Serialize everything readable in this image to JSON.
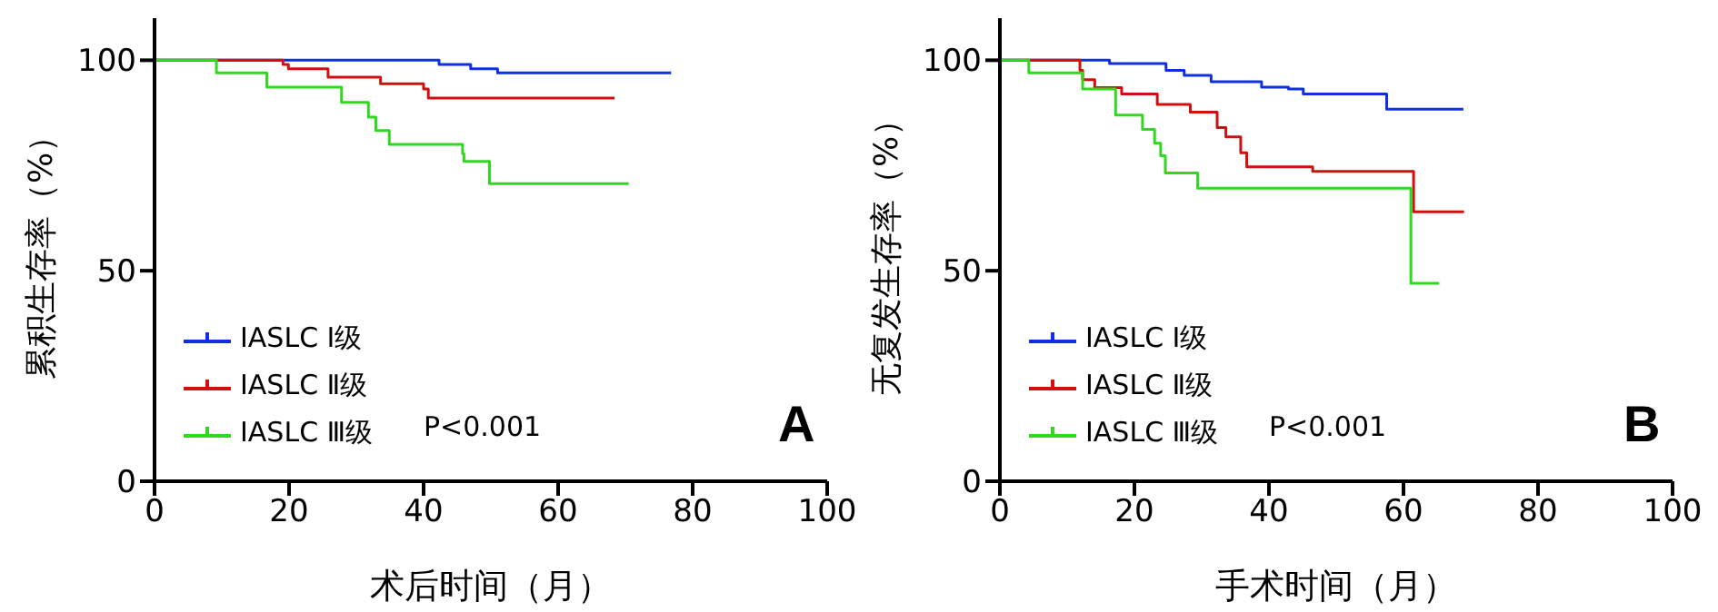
{
  "chart_data": [
    {
      "type": "step",
      "xlabel": "术后时间（月）",
      "ylabel": "累积生存率（%）",
      "xlim": [
        0,
        100
      ],
      "xticks": [
        0,
        20,
        40,
        60,
        80,
        100
      ],
      "ylim": [
        0,
        110
      ],
      "yticks": [
        0,
        50,
        100
      ],
      "legend": "bottom left",
      "grid": false,
      "marker": "none",
      "line_style": "solid",
      "annotations": [
        "P<0.001",
        "A"
      ],
      "series": [
        {
          "name": "IASLC Ⅰ级",
          "color": "#1030e0",
          "x": [
            0,
            42.3,
            47,
            51,
            76.8
          ],
          "values": [
            100,
            99,
            98,
            97,
            97
          ]
        },
        {
          "name": "IASLC Ⅱ级",
          "color": "#d01010",
          "x": [
            0,
            19.1,
            19.9,
            25.8,
            33.6,
            40,
            40.7,
            68.4
          ],
          "values": [
            100,
            99,
            98,
            96,
            94.4,
            93.2,
            91,
            91
          ]
        },
        {
          "name": "IASLC Ⅲ级",
          "color": "#30d820",
          "x": [
            0,
            9.2,
            16.7,
            27.8,
            31.8,
            32.9,
            34.9,
            45.8,
            46,
            49.8,
            70.5
          ],
          "values": [
            100,
            97,
            93.6,
            90,
            86.5,
            83.3,
            80,
            77.8,
            76,
            70.7,
            70.7
          ]
        }
      ]
    },
    {
      "type": "step",
      "xlabel": "手术时间（月）",
      "ylabel": "无复发生存率（%）",
      "xlim": [
        0,
        100
      ],
      "xticks": [
        0,
        20,
        40,
        60,
        80,
        100
      ],
      "ylim": [
        0,
        110
      ],
      "yticks": [
        0,
        50,
        100
      ],
      "legend": "bottom left",
      "grid": false,
      "marker": "none",
      "line_style": "solid",
      "annotations": [
        "P<0.001",
        "B"
      ],
      "series": [
        {
          "name": "IASLC Ⅰ级",
          "color": "#1030e0",
          "x": [
            0,
            16.3,
            24.7,
            27.4,
            31.4,
            38.9,
            42.9,
            45.1,
            57.5,
            68.9
          ],
          "values": [
            100,
            99.2,
            97.6,
            96.4,
            94.9,
            93.6,
            93.2,
            92,
            88.4,
            88.4
          ]
        },
        {
          "name": "IASLC Ⅱ级",
          "color": "#d01010",
          "x": [
            0,
            11.9,
            12.3,
            14.1,
            18.1,
            23.4,
            28.3,
            32.3,
            33.6,
            35.8,
            36.7,
            46.5,
            61.5,
            69
          ],
          "values": [
            100,
            97.6,
            95.4,
            93.5,
            92,
            89.5,
            87.7,
            84,
            81.8,
            78,
            74.7,
            73.6,
            64,
            64
          ]
        },
        {
          "name": "IASLC Ⅲ级",
          "color": "#30d820",
          "x": [
            0,
            4.3,
            12.3,
            17.2,
            21.2,
            23,
            23.9,
            24.6,
            29.4,
            61.1,
            65.3
          ],
          "values": [
            100,
            97,
            93.2,
            87,
            83.6,
            80.3,
            77.3,
            73.2,
            69.6,
            47,
            47
          ]
        }
      ]
    }
  ]
}
